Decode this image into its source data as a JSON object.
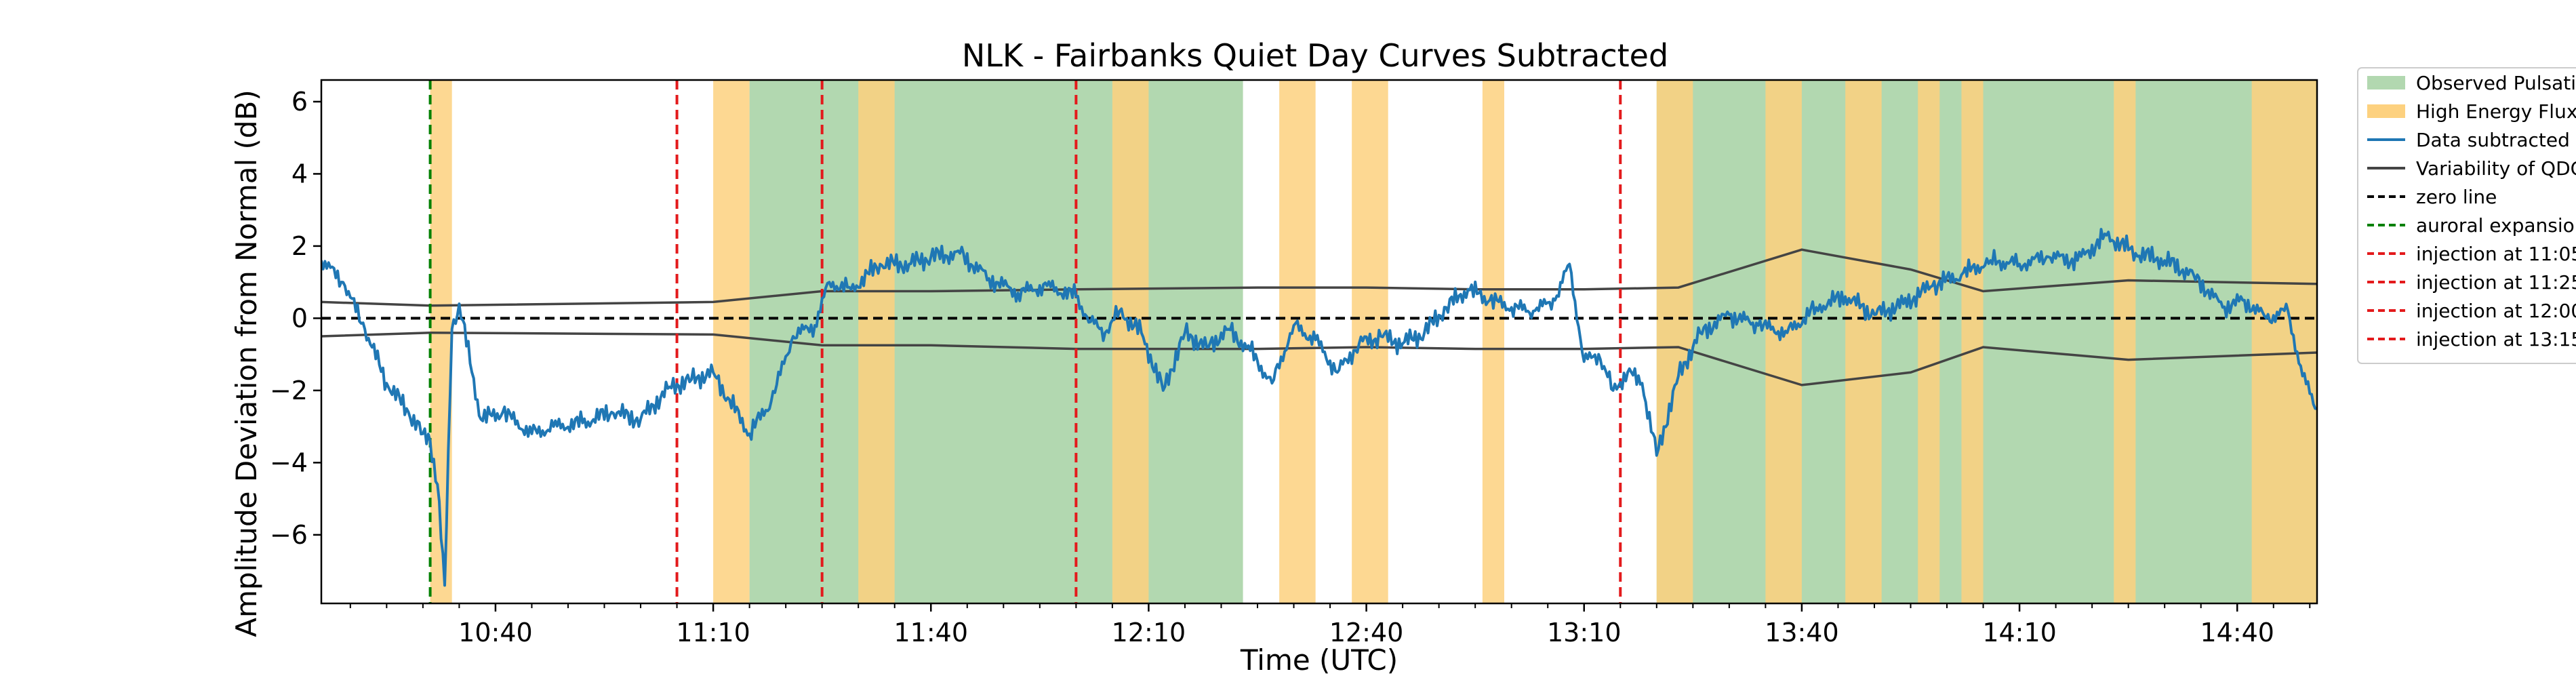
{
  "chart_data": {
    "type": "line",
    "title": "NLK - Fairbanks Quiet Day Curves Subtracted",
    "xlabel": "Time (UTC)",
    "ylabel": "Amplitude Deviation from Normal (dB)",
    "xlim": [
      "10:16",
      "14:51"
    ],
    "ylim": [
      -7.9,
      6.6
    ],
    "x_ticks": [
      "10:40",
      "11:10",
      "11:40",
      "12:10",
      "12:40",
      "13:10",
      "13:40",
      "14:10",
      "14:40"
    ],
    "y_ticks": [
      -6,
      -4,
      -2,
      0,
      2,
      4,
      6
    ],
    "grid": false,
    "legend_position": "outside-right",
    "legend": [
      {
        "label": "Observed Pulsati",
        "kind": "patch",
        "color": "#b2d8b0"
      },
      {
        "label": "High Energy Flux",
        "kind": "patch",
        "color": "#fdd17f"
      },
      {
        "label": "Data subtracted",
        "kind": "line",
        "color": "#1f77b4",
        "dash": "solid"
      },
      {
        "label": "Variability of QDC",
        "kind": "line",
        "color": "#444444",
        "dash": "solid"
      },
      {
        "label": "zero line",
        "kind": "line",
        "color": "#000000",
        "dash": "dashed"
      },
      {
        "label": "auroral expansio",
        "kind": "line",
        "color": "#008000",
        "dash": "dashed"
      },
      {
        "label": "injection at 11:05",
        "kind": "line",
        "color": "#e31a1c",
        "dash": "dashed"
      },
      {
        "label": "injection at 11:25",
        "kind": "line",
        "color": "#e31a1c",
        "dash": "dashed"
      },
      {
        "label": "injection at 12:00",
        "kind": "line",
        "color": "#e31a1c",
        "dash": "dashed"
      },
      {
        "label": "injection at 13:15",
        "kind": "line",
        "color": "#e31a1c",
        "dash": "dashed"
      }
    ],
    "pulsation_intervals": [
      [
        "11:15",
        "12:23"
      ],
      [
        "13:20",
        "14:51"
      ]
    ],
    "high_energy_flux_intervals": [
      [
        "10:31",
        "10:34"
      ],
      [
        "11:10",
        "11:15"
      ],
      [
        "11:30",
        "11:35"
      ],
      [
        "12:05",
        "12:10"
      ],
      [
        "12:28",
        "12:33"
      ],
      [
        "12:38",
        "12:43"
      ],
      [
        "12:56",
        "12:59"
      ],
      [
        "13:20",
        "13:25"
      ],
      [
        "13:35",
        "13:40"
      ],
      [
        "13:46",
        "13:51"
      ],
      [
        "13:56",
        "13:59"
      ],
      [
        "14:02",
        "14:05"
      ],
      [
        "14:23",
        "14:26"
      ],
      [
        "14:42",
        "14:51"
      ]
    ],
    "auroral_expansion": [
      "10:31"
    ],
    "injections": [
      "11:05",
      "11:25",
      "12:00",
      "13:15"
    ],
    "zero_line": 0,
    "qdc_upper": {
      "x": [
        "10:16",
        "10:31",
        "11:10",
        "11:25",
        "11:40",
        "12:00",
        "12:25",
        "12:40",
        "12:55",
        "13:10",
        "13:23",
        "13:40",
        "13:55",
        "14:05",
        "14:25",
        "14:51"
      ],
      "y": [
        0.45,
        0.35,
        0.45,
        0.75,
        0.75,
        0.8,
        0.85,
        0.85,
        0.8,
        0.8,
        0.85,
        1.9,
        1.35,
        0.75,
        1.05,
        0.95
      ]
    },
    "qdc_lower": {
      "x": [
        "10:16",
        "10:31",
        "11:10",
        "11:25",
        "11:40",
        "12:00",
        "12:25",
        "12:40",
        "12:55",
        "13:10",
        "13:23",
        "13:40",
        "13:55",
        "14:05",
        "14:25",
        "14:51"
      ],
      "y": [
        -0.5,
        -0.4,
        -0.45,
        -0.75,
        -0.75,
        -0.85,
        -0.85,
        -0.8,
        -0.85,
        -0.85,
        -0.8,
        -1.85,
        -1.5,
        -0.8,
        -1.15,
        -0.95
      ]
    },
    "series": [
      {
        "name": "Data subtracted",
        "x": [
          "10:16",
          "10:19",
          "10:22",
          "10:25",
          "10:28",
          "10:30",
          "10:31",
          "10:32",
          "10:33",
          "10:34",
          "10:35",
          "10:38",
          "10:41",
          "10:45",
          "10:48",
          "10:52",
          "10:56",
          "11:00",
          "11:04",
          "11:07",
          "11:10",
          "11:12",
          "11:15",
          "11:18",
          "11:21",
          "11:24",
          "11:26",
          "11:29",
          "11:33",
          "11:37",
          "11:40",
          "11:44",
          "11:48",
          "11:52",
          "11:56",
          "12:00",
          "12:02",
          "12:04",
          "12:06",
          "12:09",
          "12:12",
          "12:15",
          "12:18",
          "12:21",
          "12:24",
          "12:27",
          "12:30",
          "12:33",
          "12:36",
          "12:39",
          "12:42",
          "12:45",
          "12:48",
          "12:51",
          "12:54",
          "12:57",
          "13:00",
          "13:03",
          "13:06",
          "13:08",
          "13:10",
          "13:12",
          "13:14",
          "13:16",
          "13:18",
          "13:20",
          "13:23",
          "13:26",
          "13:30",
          "13:34",
          "13:38",
          "13:42",
          "13:46",
          "13:50",
          "13:54",
          "13:58",
          "14:02",
          "14:06",
          "14:10",
          "14:14",
          "14:18",
          "14:22",
          "14:26",
          "14:30",
          "14:34",
          "14:38",
          "14:41",
          "14:44",
          "14:47",
          "14:49",
          "14:51"
        ],
        "y": [
          1.6,
          1.0,
          -0.3,
          -1.8,
          -2.6,
          -3.2,
          -3.4,
          -4.6,
          -7.4,
          -0.3,
          0.4,
          -2.8,
          -2.6,
          -3.2,
          -3.0,
          -2.9,
          -2.6,
          -2.8,
          -1.9,
          -1.7,
          -1.5,
          -2.2,
          -3.2,
          -2.3,
          -0.5,
          -0.2,
          1.0,
          0.8,
          1.5,
          1.5,
          1.7,
          1.8,
          1.1,
          0.7,
          0.9,
          0.6,
          -0.1,
          -0.4,
          0.2,
          -0.4,
          -2.0,
          -0.4,
          -0.8,
          -0.3,
          -0.9,
          -1.8,
          -0.2,
          -0.6,
          -1.5,
          -0.7,
          -0.5,
          -0.7,
          -0.4,
          0.3,
          0.8,
          0.5,
          0.3,
          0.2,
          0.5,
          1.5,
          -1.2,
          -1.0,
          -2.0,
          -1.5,
          -1.8,
          -3.8,
          -1.6,
          -0.4,
          0.1,
          -0.2,
          -0.4,
          0.3,
          0.6,
          0.1,
          0.4,
          0.9,
          1.2,
          1.6,
          1.5,
          1.7,
          1.6,
          2.3,
          1.8,
          1.6,
          1.2,
          0.3,
          0.5,
          0.0,
          0.2,
          -1.6,
          -2.5
        ]
      }
    ]
  }
}
